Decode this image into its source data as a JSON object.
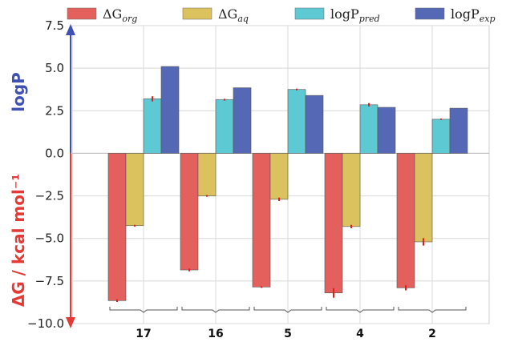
{
  "chart_data": {
    "type": "bar",
    "categories": [
      "17",
      "16",
      "5",
      "4",
      "2"
    ],
    "series": [
      {
        "name_main": "ΔG",
        "name_sub": "org",
        "color": "#e3605c",
        "values": [
          -8.65,
          -6.85,
          -7.85,
          -8.2,
          -7.9
        ],
        "errors": [
          0.08,
          0.08,
          0.05,
          0.28,
          0.15
        ]
      },
      {
        "name_main": "ΔG",
        "name_sub": "aq",
        "color": "#dcc25e",
        "values": [
          -4.25,
          -2.5,
          -2.7,
          -4.3,
          -5.2
        ],
        "errors": [
          0.05,
          0.05,
          0.1,
          0.1,
          0.22
        ]
      },
      {
        "name_main": "logP",
        "name_sub": "pred",
        "color": "#5dc9d3",
        "values": [
          3.2,
          3.15,
          3.75,
          2.85,
          2.0
        ],
        "errors": [
          0.15,
          0.05,
          0.05,
          0.1,
          0.04
        ]
      },
      {
        "name_main": "logP",
        "name_sub": "exp",
        "color": "#5468b5",
        "values": [
          5.1,
          3.85,
          3.4,
          2.7,
          2.65
        ],
        "errors": [
          0,
          0,
          0,
          0,
          0
        ]
      }
    ],
    "yticks": [
      "7.5",
      "5.0",
      "2.5",
      "0.0",
      "−2.5",
      "−5.0",
      "−7.5",
      "−10.0"
    ],
    "ylim": [
      -10,
      7.5
    ],
    "y_label_top": "logP",
    "y_label_bottom": "ΔG / kcal mol⁻¹",
    "y_label_top_color": "#3f51b5",
    "y_label_bottom_color": "#e53935",
    "error_bar_color": "#e0201a",
    "grid": true,
    "legend": "top"
  }
}
